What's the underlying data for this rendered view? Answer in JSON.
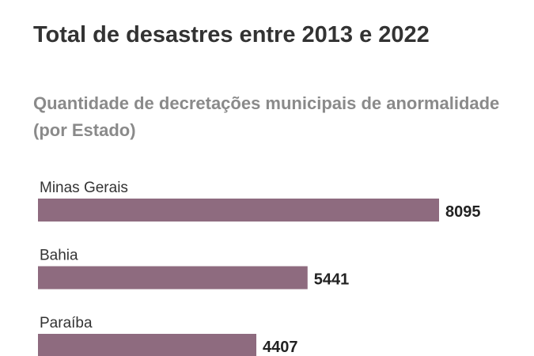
{
  "chart_data": {
    "type": "bar",
    "orientation": "horizontal",
    "title": "Total de desastres entre 2013 e 2022",
    "subtitle": "Quantidade de decretações municipais de anormalidade (por Estado)",
    "categories": [
      "Minas Gerais",
      "Bahia",
      "Paraíba"
    ],
    "values": [
      8095,
      5441,
      4407
    ],
    "data_labels": [
      "8095",
      "5441",
      "4407"
    ],
    "xlim": [
      0,
      8095
    ],
    "grid": false,
    "bar_color": "#8e6b7f"
  }
}
